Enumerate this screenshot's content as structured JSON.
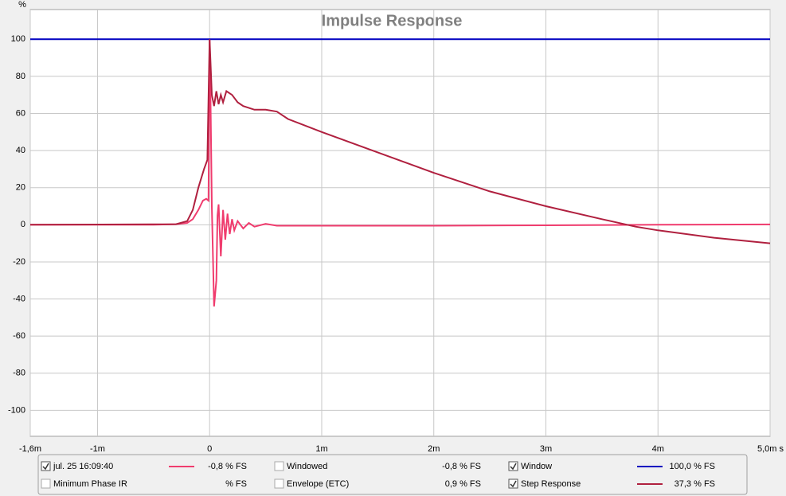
{
  "chart_data": {
    "type": "line",
    "title": "Impulse Response",
    "y_unit": "%",
    "xlim": [
      -1.6,
      5.0
    ],
    "ylim": [
      -114,
      116
    ],
    "xticks": [
      {
        "value": -1.6,
        "label": "-1,6m"
      },
      {
        "value": -1,
        "label": "-1m"
      },
      0,
      {
        "value": 1,
        "label": "1m"
      },
      {
        "value": 2,
        "label": "2m"
      },
      {
        "value": 3,
        "label": "3m"
      },
      {
        "value": 4,
        "label": "4m"
      },
      {
        "value": 5,
        "label": "5,0m s"
      }
    ],
    "yticks": [
      100,
      80,
      60,
      40,
      20,
      0,
      -20,
      -40,
      -60,
      -80,
      -100
    ],
    "grid": true,
    "series": [
      {
        "name": "jul. 25 16:09:40",
        "color": "#f03c6e",
        "checked": true,
        "readout": "-0,8 % FS",
        "x": [
          -1.6,
          -0.5,
          -0.3,
          -0.2,
          -0.15,
          -0.1,
          -0.06,
          -0.03,
          -0.01,
          0,
          0.01,
          0.02,
          0.04,
          0.06,
          0.07,
          0.08,
          0.1,
          0.12,
          0.14,
          0.16,
          0.18,
          0.2,
          0.22,
          0.25,
          0.3,
          0.35,
          0.4,
          0.5,
          0.6,
          0.8,
          1,
          2,
          3,
          4,
          5
        ],
        "values": [
          0,
          0,
          0.3,
          1,
          3,
          8,
          13,
          14,
          13,
          100,
          60,
          10,
          -44,
          -30,
          5,
          11,
          -17,
          8,
          -8,
          6,
          -5,
          3,
          -3,
          2,
          -2,
          1,
          -1,
          0.5,
          -0.5,
          -0.5,
          -0.5,
          -0.5,
          -0.3,
          0,
          0.2
        ]
      },
      {
        "name": "Minimum Phase IR",
        "color": "#a0a0a0",
        "checked": false,
        "readout": "% FS"
      },
      {
        "name": "Windowed",
        "color": "#f03c6e",
        "checked": false,
        "readout": "-0,8 % FS"
      },
      {
        "name": "Envelope (ETC)",
        "color": "#9a1e3c",
        "checked": false,
        "readout": "0,9 % FS"
      },
      {
        "name": "Window",
        "color": "#0000c0",
        "checked": true,
        "readout": "100,0 % FS",
        "x": [
          -1.6,
          5.0
        ],
        "values": [
          100,
          100
        ]
      },
      {
        "name": "Step Response",
        "color": "#b0203f",
        "checked": true,
        "readout": "37,3 % FS",
        "x": [
          -1.6,
          -0.3,
          -0.2,
          -0.15,
          -0.1,
          -0.05,
          -0.02,
          0,
          0.02,
          0.04,
          0.06,
          0.08,
          0.1,
          0.12,
          0.15,
          0.2,
          0.25,
          0.3,
          0.4,
          0.5,
          0.6,
          0.7,
          1.0,
          1.5,
          2.0,
          2.5,
          3.0,
          3.5,
          3.8,
          4.0,
          4.5,
          5.0
        ],
        "values": [
          0,
          0.3,
          2,
          8,
          20,
          30,
          35,
          100,
          70,
          64,
          72,
          65,
          70,
          66,
          72,
          70,
          66,
          64,
          62,
          62,
          61,
          57,
          50,
          39,
          28,
          18,
          10,
          3,
          -1,
          -3,
          -7,
          -10
        ]
      }
    ]
  }
}
